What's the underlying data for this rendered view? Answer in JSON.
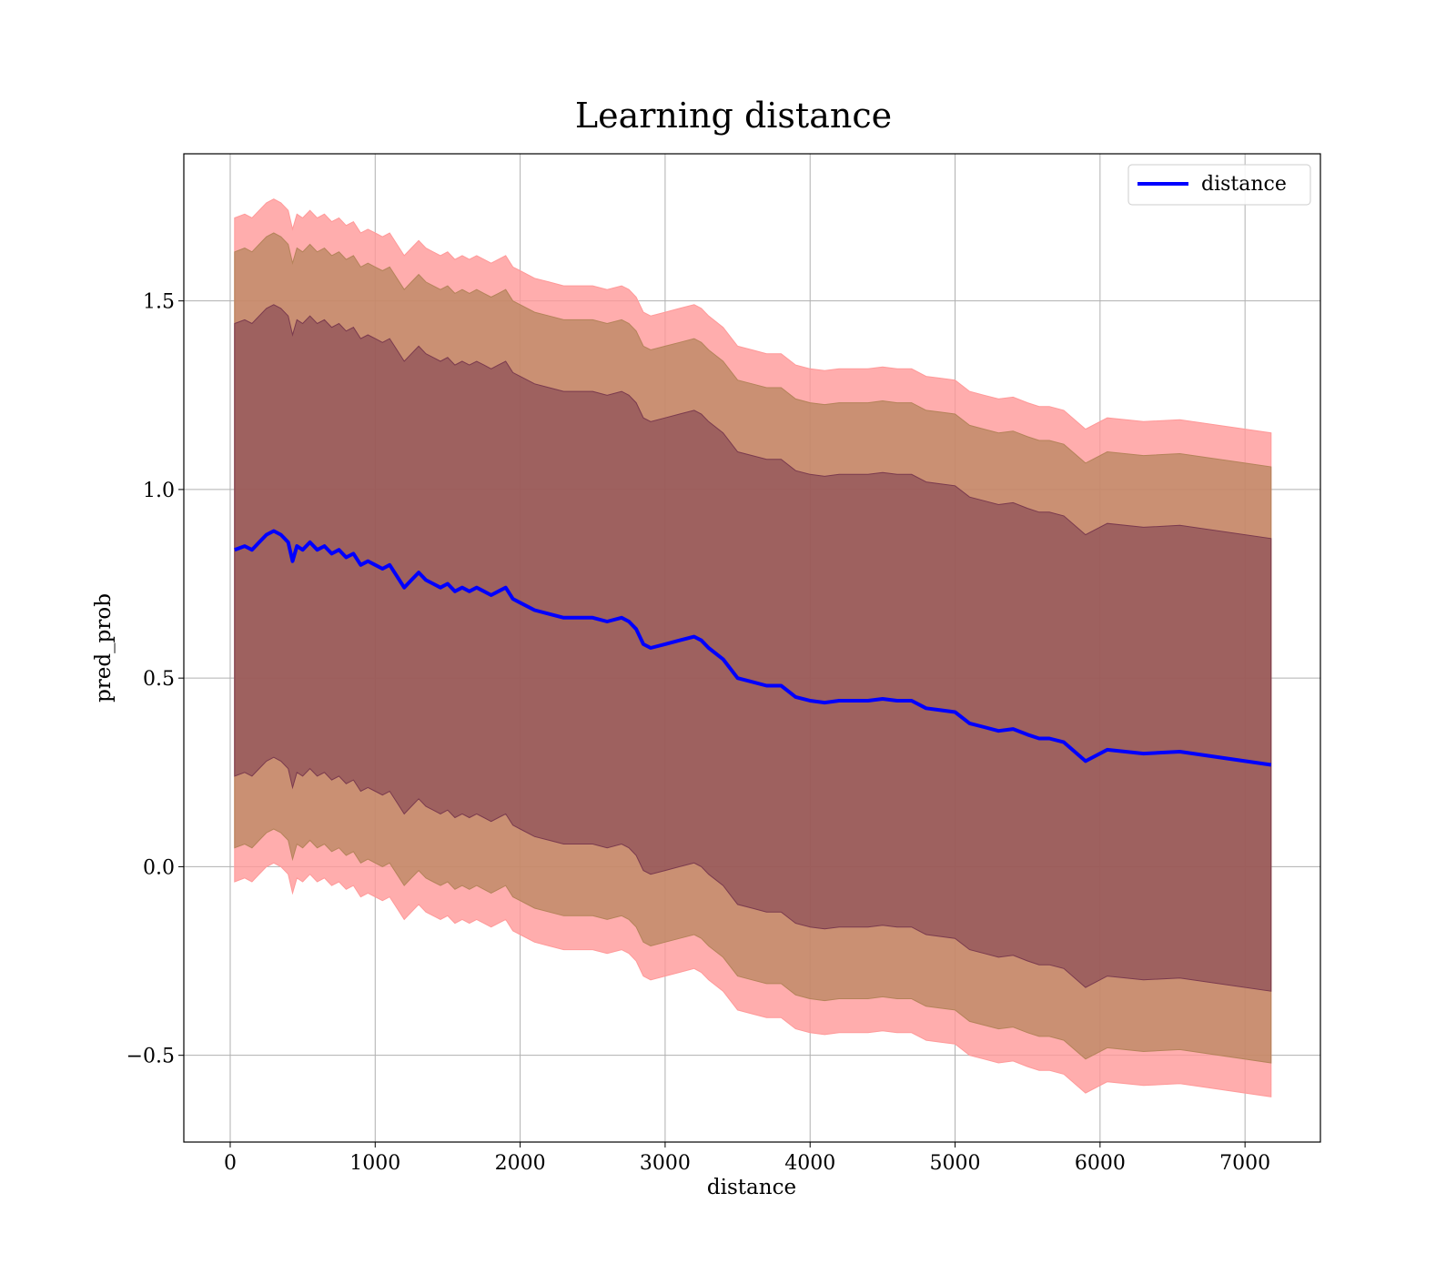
{
  "chart_data": {
    "type": "line",
    "title": "Learning distance",
    "xlabel": "distance",
    "ylabel": "pred_prob",
    "xlim": [
      -320,
      7520
    ],
    "ylim": [
      -0.73,
      1.89
    ],
    "xticks": [
      0,
      1000,
      2000,
      3000,
      4000,
      5000,
      6000,
      7000
    ],
    "xtick_labels": [
      "0",
      "1000",
      "2000",
      "3000",
      "4000",
      "5000",
      "6000",
      "7000"
    ],
    "yticks": [
      -0.5,
      0.0,
      0.5,
      1.0,
      1.5
    ],
    "ytick_labels": [
      "−0.5",
      "0.0",
      "0.5",
      "1.0",
      "1.5"
    ],
    "grid": true,
    "legend_position": "top-right",
    "colors": {
      "line": "#0000ff",
      "band_outer": "#ff9999",
      "band_middle": "#b4835a",
      "band_inner": "#7a3a4e",
      "grid": "#b0b0b0"
    },
    "series": [
      {
        "name": "distance",
        "x": [
          30,
          100,
          150,
          200,
          250,
          300,
          350,
          400,
          430,
          460,
          500,
          550,
          600,
          650,
          700,
          750,
          800,
          850,
          900,
          950,
          1000,
          1050,
          1100,
          1150,
          1200,
          1250,
          1300,
          1350,
          1400,
          1450,
          1500,
          1550,
          1600,
          1650,
          1700,
          1750,
          1800,
          1850,
          1900,
          1950,
          2000,
          2100,
          2200,
          2300,
          2400,
          2500,
          2600,
          2700,
          2750,
          2800,
          2850,
          2900,
          3000,
          3100,
          3200,
          3250,
          3300,
          3400,
          3500,
          3600,
          3700,
          3800,
          3900,
          4000,
          4100,
          4200,
          4300,
          4400,
          4500,
          4600,
          4700,
          4800,
          4900,
          5000,
          5100,
          5200,
          5300,
          5400,
          5500,
          5580,
          5650,
          5750,
          5900,
          6050,
          6300,
          6550,
          7180
        ],
        "y": [
          0.84,
          0.85,
          0.84,
          0.86,
          0.88,
          0.89,
          0.88,
          0.86,
          0.81,
          0.85,
          0.84,
          0.86,
          0.84,
          0.85,
          0.83,
          0.84,
          0.82,
          0.83,
          0.8,
          0.81,
          0.8,
          0.79,
          0.8,
          0.77,
          0.74,
          0.76,
          0.78,
          0.76,
          0.75,
          0.74,
          0.75,
          0.73,
          0.74,
          0.73,
          0.74,
          0.73,
          0.72,
          0.73,
          0.74,
          0.71,
          0.7,
          0.68,
          0.67,
          0.66,
          0.66,
          0.66,
          0.65,
          0.66,
          0.65,
          0.63,
          0.59,
          0.58,
          0.59,
          0.6,
          0.61,
          0.6,
          0.58,
          0.55,
          0.5,
          0.49,
          0.48,
          0.48,
          0.45,
          0.44,
          0.435,
          0.44,
          0.44,
          0.44,
          0.445,
          0.44,
          0.44,
          0.42,
          0.415,
          0.41,
          0.38,
          0.37,
          0.36,
          0.365,
          0.35,
          0.34,
          0.34,
          0.33,
          0.28,
          0.31,
          0.3,
          0.305,
          0.27
        ],
        "band_half_widths": [
          0.6,
          0.79,
          0.88
        ]
      }
    ]
  }
}
